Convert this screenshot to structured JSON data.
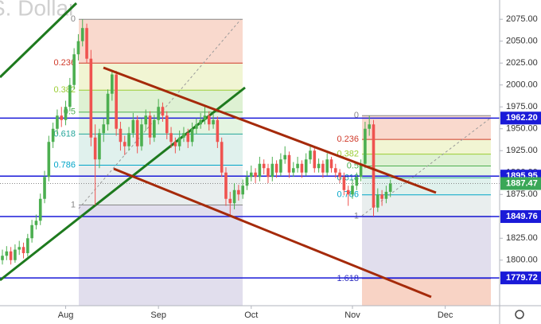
{
  "chart_data": {
    "type": "candlestick",
    "title": "S. Dollar",
    "categories": [
      null,
      null,
      null,
      null,
      null,
      null,
      null,
      null,
      null,
      null,
      null,
      null,
      null,
      null,
      null,
      null,
      null,
      null,
      null,
      null,
      null,
      null,
      null,
      null,
      null,
      null,
      null,
      null,
      null,
      null,
      null,
      null,
      null,
      null,
      null,
      null,
      null,
      null,
      null,
      null,
      null,
      null,
      null,
      null,
      null,
      null,
      null,
      null,
      null,
      null,
      null,
      null,
      null,
      null,
      null,
      null,
      null,
      null,
      null,
      null,
      null,
      null,
      null,
      null,
      null,
      null,
      null,
      null,
      null,
      null,
      null,
      null,
      null,
      null,
      null,
      null,
      null,
      null,
      null,
      null,
      null,
      null,
      null,
      null,
      null,
      null,
      null,
      null,
      null,
      null,
      null,
      null,
      null
    ],
    "open": [
      1800,
      1805,
      1810,
      1800,
      1812,
      1815,
      1808,
      1825,
      1840,
      1845,
      1870,
      1895,
      1935,
      1950,
      1965,
      1960,
      1975,
      2000,
      2035,
      2050,
      2065,
      2030,
      1940,
      1915,
      1945,
      1955,
      1990,
      2012,
      1950,
      1935,
      1930,
      1945,
      1960,
      1930,
      1955,
      1965,
      1940,
      1960,
      1975,
      1965,
      1945,
      1935,
      1930,
      1940,
      1945,
      1935,
      1950,
      1955,
      1960,
      1965,
      1955,
      1960,
      1935,
      1900,
      1870,
      1865,
      1880,
      1875,
      1885,
      1895,
      1900,
      1895,
      1910,
      1905,
      1895,
      1910,
      1900,
      1915,
      1920,
      1900,
      1905,
      1910,
      1900,
      1915,
      1925,
      1905,
      1910,
      1900,
      1915,
      1905,
      1900,
      1895,
      1880,
      1875,
      1885,
      1895,
      1910,
      1950,
      1955,
      1860,
      1875,
      1870,
      1878
    ],
    "high": [
      1812,
      1816,
      1815,
      1818,
      1822,
      1820,
      1830,
      1846,
      1852,
      1876,
      1902,
      1942,
      1957,
      1972,
      1975,
      1982,
      2008,
      2042,
      2058,
      2075,
      2070,
      2040,
      1955,
      1950,
      1962,
      1995,
      2015,
      2016,
      1958,
      1942,
      1952,
      1968,
      1965,
      1962,
      1972,
      1970,
      1966,
      1984,
      1980,
      1970,
      1952,
      1940,
      1948,
      1952,
      1950,
      1957,
      1962,
      1968,
      1975,
      1970,
      1968,
      1964,
      1940,
      1906,
      1878,
      1888,
      1886,
      1892,
      1902,
      1908,
      1905,
      1918,
      1915,
      1910,
      1918,
      1914,
      1922,
      1930,
      1924,
      1912,
      1918,
      1914,
      1922,
      1932,
      1928,
      1916,
      1914,
      1922,
      1918,
      1910,
      1904,
      1900,
      1885,
      1892,
      1900,
      1915,
      1958,
      1965,
      1960,
      1882,
      1880,
      1885,
      1892
    ],
    "low": [
      1795,
      1800,
      1795,
      1797,
      1806,
      1802,
      1804,
      1820,
      1835,
      1840,
      1865,
      1890,
      1928,
      1944,
      1952,
      1954,
      1970,
      1995,
      2028,
      2044,
      2025,
      1930,
      1863,
      1905,
      1935,
      1948,
      1982,
      1942,
      1925,
      1920,
      1925,
      1940,
      1922,
      1925,
      1948,
      1932,
      1935,
      1955,
      1958,
      1938,
      1928,
      1922,
      1925,
      1935,
      1928,
      1930,
      1944,
      1950,
      1955,
      1948,
      1950,
      1928,
      1895,
      1862,
      1850,
      1858,
      1868,
      1870,
      1880,
      1890,
      1888,
      1890,
      1898,
      1888,
      1890,
      1894,
      1896,
      1910,
      1894,
      1895,
      1900,
      1894,
      1896,
      1910,
      1900,
      1900,
      1894,
      1896,
      1900,
      1894,
      1888,
      1874,
      1862,
      1870,
      1880,
      1890,
      1905,
      1942,
      1850,
      1855,
      1862,
      1865,
      1872
    ],
    "close": [
      1805,
      1810,
      1800,
      1812,
      1815,
      1808,
      1825,
      1840,
      1845,
      1870,
      1895,
      1935,
      1950,
      1965,
      1960,
      1975,
      2000,
      2035,
      2050,
      2065,
      2030,
      1940,
      1915,
      1945,
      1955,
      1990,
      2012,
      1950,
      1935,
      1930,
      1945,
      1960,
      1930,
      1955,
      1965,
      1940,
      1960,
      1975,
      1965,
      1945,
      1935,
      1930,
      1940,
      1945,
      1935,
      1950,
      1955,
      1960,
      1965,
      1955,
      1960,
      1935,
      1900,
      1870,
      1865,
      1880,
      1875,
      1885,
      1895,
      1900,
      1895,
      1910,
      1905,
      1895,
      1910,
      1900,
      1915,
      1920,
      1900,
      1905,
      1910,
      1900,
      1915,
      1925,
      1905,
      1910,
      1900,
      1915,
      1905,
      1900,
      1895,
      1880,
      1875,
      1885,
      1895,
      1910,
      1950,
      1955,
      1860,
      1875,
      1870,
      1878,
      1887.47
    ],
    "up_color": "#4caf50",
    "down_color": "#ef5350",
    "xlim": [
      -0.57,
      117.9
    ],
    "xticks": [
      {
        "value": 15,
        "label": "Aug"
      },
      {
        "value": 37,
        "label": "Sep"
      },
      {
        "value": 59,
        "label": "Oct"
      },
      {
        "value": 83,
        "label": "Nov"
      },
      {
        "value": 105,
        "label": "Dec"
      }
    ],
    "ylim": [
      1748,
      2097
    ],
    "yticks": [
      {
        "value": 1800,
        "label": "1800.00"
      },
      {
        "value": 1825,
        "label": "1825.00"
      },
      {
        "value": 1850,
        "label": "1850.00"
      },
      {
        "value": 1875,
        "label": "1875.00"
      },
      {
        "value": 1900,
        "label": "1900.00"
      },
      {
        "value": 1925,
        "label": "1925.00"
      },
      {
        "value": 1950,
        "label": "1950.00"
      },
      {
        "value": 1975,
        "label": "1975.00"
      },
      {
        "value": 2000,
        "label": "2000.00"
      },
      {
        "value": 2025,
        "label": "2025.00"
      },
      {
        "value": 2050,
        "label": "2050.00"
      },
      {
        "value": 2075,
        "label": "2075.00"
      }
    ],
    "levels": [
      {
        "value": 1962.2,
        "label": "1962.20"
      },
      {
        "value": 1895.95,
        "label": "1895.95"
      },
      {
        "value": 1849.76,
        "label": "1849.76"
      },
      {
        "value": 1779.72,
        "label": "1779.72"
      }
    ],
    "level_color": "#1a1ad8",
    "last_price_color": "#3aa757",
    "fibs": [
      {
        "start": 2075,
        "end": 1863,
        "levels": [
          "0",
          "0.236",
          "0.382",
          "0.5",
          "0.618",
          "0.786",
          "1"
        ]
      },
      {
        "start": 1965,
        "end": 1850,
        "levels": [
          "0",
          "0.236",
          "0.382",
          "0.5",
          "0.618",
          "0.786",
          "1",
          "1.618"
        ]
      }
    ]
  }
}
